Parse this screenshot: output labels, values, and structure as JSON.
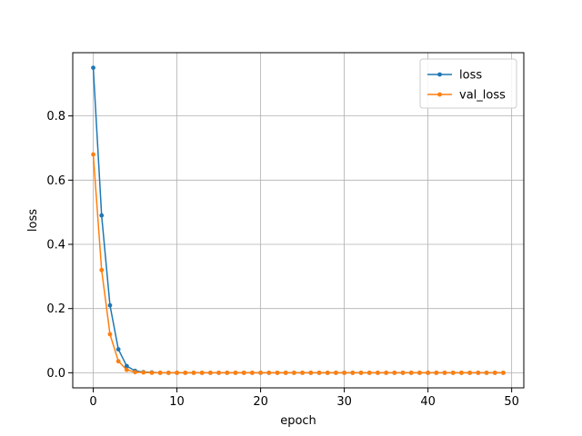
{
  "chart_data": {
    "type": "line",
    "xlabel": "epoch",
    "ylabel": "loss",
    "xlim": [
      -2.45,
      51.45
    ],
    "ylim": [
      -0.047,
      0.997
    ],
    "xticks": [
      0,
      10,
      20,
      30,
      40,
      50
    ],
    "yticks": [
      0.0,
      0.2,
      0.4,
      0.6,
      0.8
    ],
    "xtick_labels": [
      "0",
      "10",
      "20",
      "30",
      "40",
      "50"
    ],
    "ytick_labels": [
      "0.0",
      "0.2",
      "0.4",
      "0.6",
      "0.8"
    ],
    "grid": true,
    "legend_position": "upper right",
    "x": [
      0,
      1,
      2,
      3,
      4,
      5,
      6,
      7,
      8,
      9,
      10,
      11,
      12,
      13,
      14,
      15,
      16,
      17,
      18,
      19,
      20,
      21,
      22,
      23,
      24,
      25,
      26,
      27,
      28,
      29,
      30,
      31,
      32,
      33,
      34,
      35,
      36,
      37,
      38,
      39,
      40,
      41,
      42,
      43,
      44,
      45,
      46,
      47,
      48,
      49
    ],
    "series": [
      {
        "name": "loss",
        "color": "#1f77b4",
        "values": [
          0.95,
          0.49,
          0.21,
          0.073,
          0.021,
          0.006,
          0.002,
          0.001,
          0,
          0,
          0,
          0,
          0,
          0,
          0,
          0,
          0,
          0,
          0,
          0,
          0,
          0,
          0,
          0,
          0,
          0,
          0,
          0,
          0,
          0,
          0,
          0,
          0,
          0,
          0,
          0,
          0,
          0,
          0,
          0,
          0,
          0,
          0,
          0,
          0,
          0,
          0,
          0,
          0,
          0
        ]
      },
      {
        "name": "val_loss",
        "color": "#ff7f0e",
        "values": [
          0.68,
          0.32,
          0.12,
          0.036,
          0.009,
          0.002,
          0.001,
          0,
          0,
          0,
          0,
          0,
          0,
          0,
          0,
          0,
          0,
          0,
          0,
          0,
          0,
          0,
          0,
          0,
          0,
          0,
          0,
          0,
          0,
          0,
          0,
          0,
          0,
          0,
          0,
          0,
          0,
          0,
          0,
          0,
          0,
          0,
          0,
          0,
          0,
          0,
          0,
          0,
          0,
          0
        ]
      }
    ]
  }
}
